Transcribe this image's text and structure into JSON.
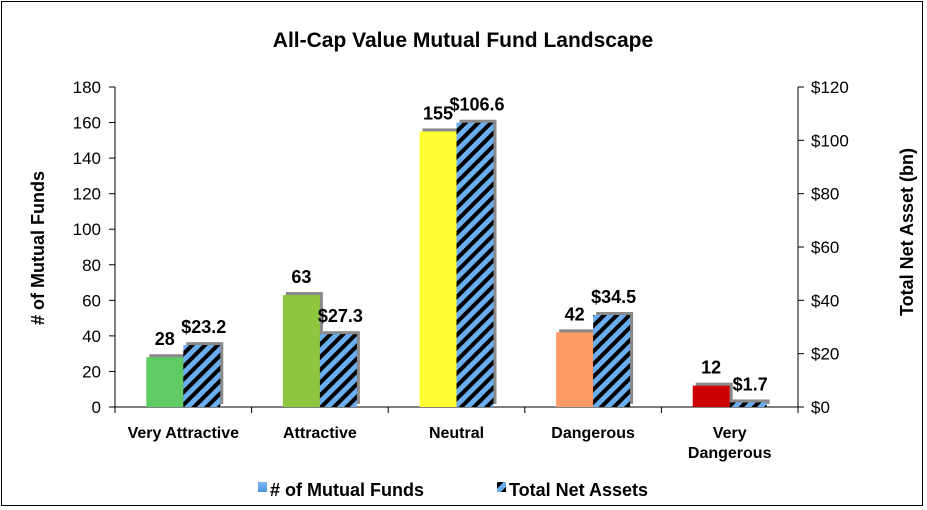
{
  "chart_data": {
    "type": "bar",
    "title": "All-Cap Value Mutual Fund Landscape",
    "categories": [
      "Very Attractive",
      "Attractive",
      "Neutral",
      "Dangerous",
      "Very Dangerous"
    ],
    "category_lines": [
      [
        "Very Attractive"
      ],
      [
        "Attractive"
      ],
      [
        "Neutral"
      ],
      [
        "Dangerous"
      ],
      [
        "Very",
        "Dangerous"
      ]
    ],
    "ylabel": "# of Mutual Funds",
    "y2label": "Total Net Asset (bn)",
    "ylim": [
      0,
      180
    ],
    "y_ticks": [
      0,
      20,
      40,
      60,
      80,
      100,
      120,
      140,
      160,
      180
    ],
    "y2lim": [
      0,
      120
    ],
    "y2_ticks": [
      "$0",
      "$20",
      "$40",
      "$60",
      "$80",
      "$100",
      "$120"
    ],
    "legend_position": "bottom",
    "grid": false,
    "series": [
      {
        "name": "# of Mutual Funds",
        "axis": "left",
        "values": [
          28,
          63,
          155,
          42,
          12
        ],
        "labels": [
          "28",
          "63",
          "155",
          "42",
          "12"
        ],
        "colors": [
          "#5ecc62",
          "#8ec63f",
          "#ffff33",
          "#ff9966",
          "#cc0000"
        ],
        "legend_color": "#6aaef0"
      },
      {
        "name": "Total Net Assets",
        "axis": "right",
        "values": [
          23.2,
          27.3,
          106.6,
          34.5,
          1.7
        ],
        "labels": [
          "$23.2",
          "$27.3",
          "$106.6",
          "$34.5",
          "$1.7"
        ],
        "pattern": "diagonal-stripes",
        "colors": [
          "#6aaef0",
          "#000000"
        ]
      }
    ]
  }
}
